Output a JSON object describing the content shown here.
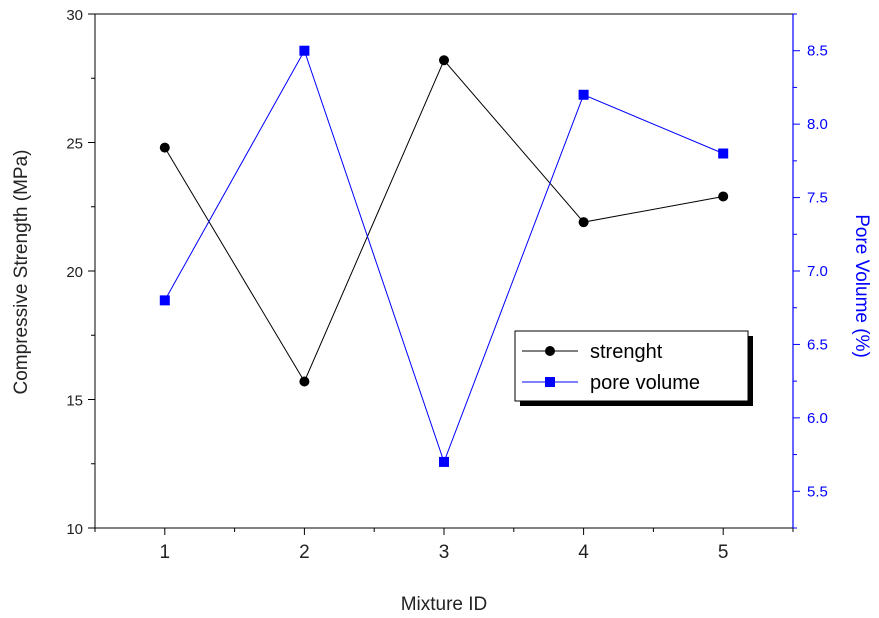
{
  "chart_data": {
    "type": "line",
    "xlabel": "Mixture ID",
    "ylabel_left": "Compressive Strength (MPa)",
    "ylabel_right": "Pore Volume (%)",
    "x": [
      1,
      2,
      3,
      4,
      5
    ],
    "x_ticks": [
      "1",
      "2",
      "3",
      "4",
      "5"
    ],
    "xlim": [
      0.5,
      5.5
    ],
    "ylim_left": [
      10,
      30
    ],
    "y_left_ticks": [
      "10",
      "15",
      "20",
      "25",
      "30"
    ],
    "ylim_right": [
      5.25,
      8.75
    ],
    "y_right_ticks": [
      "5.5",
      "6.0",
      "6.5",
      "7.0",
      "7.5",
      "8.0",
      "8.5"
    ],
    "grid": false,
    "legend_position": "center-right",
    "series": [
      {
        "name": "strenght",
        "axis": "left",
        "color": "#000000",
        "marker": "circle",
        "values": [
          24.8,
          15.7,
          28.2,
          21.9,
          22.9
        ]
      },
      {
        "name": "pore volume",
        "axis": "right",
        "color": "#0000ff",
        "marker": "square",
        "values": [
          6.8,
          8.5,
          5.7,
          8.2,
          7.8
        ]
      }
    ]
  }
}
